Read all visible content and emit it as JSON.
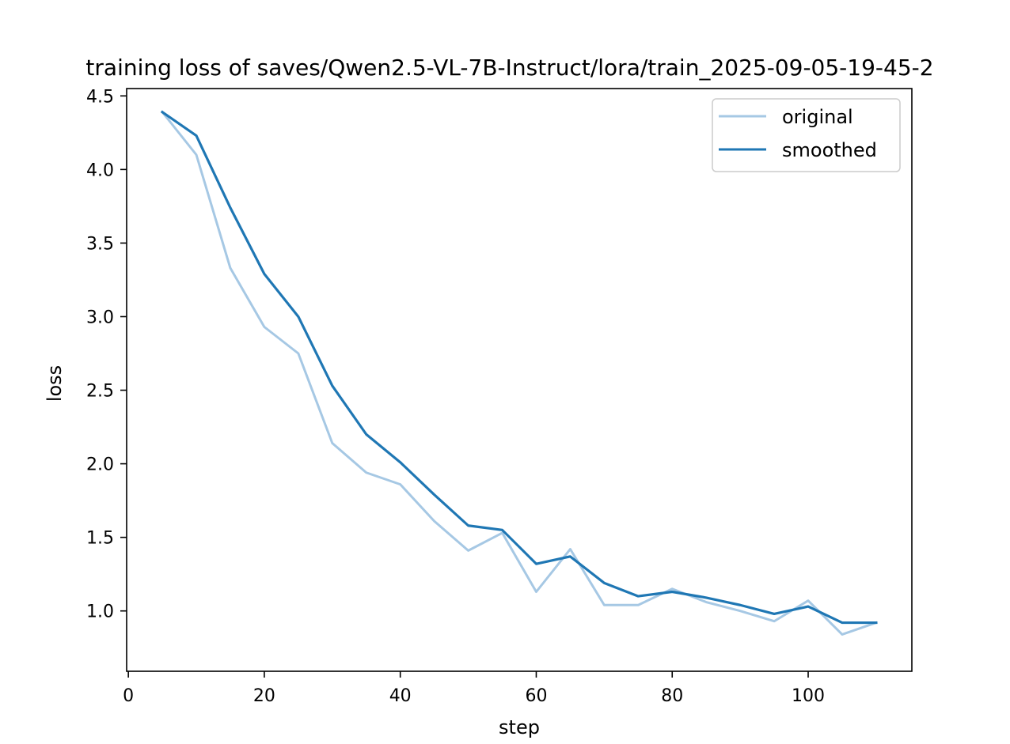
{
  "chart_data": {
    "type": "line",
    "title": "training loss of saves/Qwen2.5-VL-7B-Instruct/lora/train_2025-09-05-19-45-2",
    "xlabel": "step",
    "ylabel": "loss",
    "xlim": [
      -0.25,
      115.25
    ],
    "ylim": [
      0.59,
      4.55
    ],
    "xticks": [
      0,
      20,
      40,
      60,
      80,
      100
    ],
    "yticks": [
      1.0,
      1.5,
      2.0,
      2.5,
      3.0,
      3.5,
      4.0,
      4.5
    ],
    "ytick_labels": [
      "1.0",
      "1.5",
      "2.0",
      "2.5",
      "3.0",
      "3.5",
      "4.0",
      "4.5"
    ],
    "legend_position": "top-right",
    "grid": false,
    "x": [
      5,
      10,
      15,
      20,
      25,
      30,
      35,
      40,
      45,
      50,
      55,
      60,
      65,
      70,
      75,
      80,
      85,
      90,
      95,
      100,
      105,
      110
    ],
    "series": [
      {
        "name": "original",
        "color": "#a6c8e4",
        "values": [
          4.39,
          4.1,
          3.33,
          2.93,
          2.75,
          2.14,
          1.94,
          1.86,
          1.61,
          1.41,
          1.53,
          1.13,
          1.42,
          1.04,
          1.04,
          1.15,
          1.06,
          1.0,
          0.93,
          1.07,
          0.84,
          0.92
        ]
      },
      {
        "name": "smoothed",
        "color": "#1f77b4",
        "values": [
          4.39,
          4.23,
          3.74,
          3.29,
          3.0,
          2.53,
          2.2,
          2.01,
          1.79,
          1.58,
          1.55,
          1.32,
          1.37,
          1.19,
          1.1,
          1.13,
          1.09,
          1.04,
          0.98,
          1.03,
          0.92,
          0.92
        ]
      }
    ]
  }
}
